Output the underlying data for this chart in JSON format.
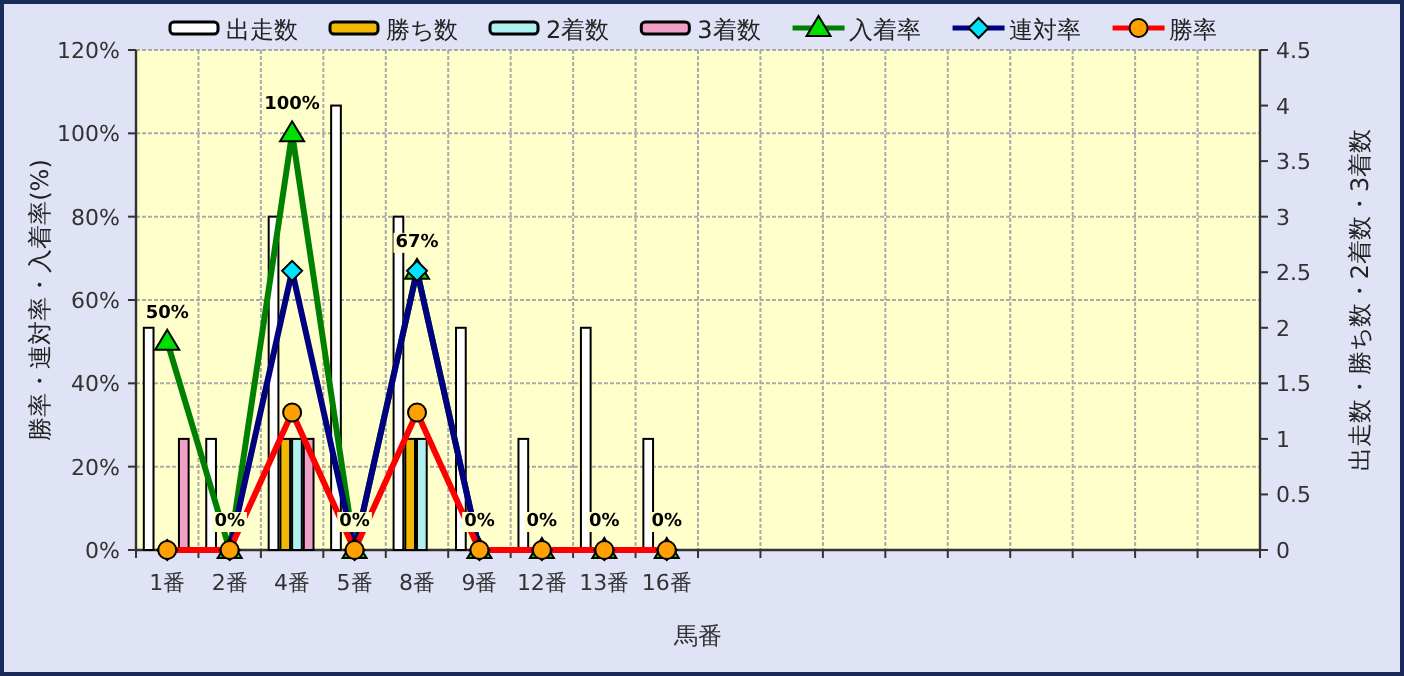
{
  "chart_data": {
    "type": "bar",
    "xlabel": "馬番",
    "ylabel": "勝率・連対率・入着率(%)",
    "y2label": "出走数・勝ち数・2着数・3着数",
    "categories": [
      "1番",
      "2番",
      "4番",
      "5番",
      "8番",
      "9番",
      "12番",
      "13番",
      "16番",
      null,
      null,
      null,
      null,
      null,
      null,
      null,
      null,
      null
    ],
    "series": [
      {
        "name": "出走数",
        "axis": "y2",
        "color": "#ffffff",
        "values": [
          2,
          1,
          3,
          4,
          3,
          2,
          1,
          2,
          1,
          null,
          null,
          null,
          null,
          null,
          null,
          null,
          null,
          null
        ]
      },
      {
        "name": "勝ち数",
        "axis": "y2",
        "color": "#f0b800",
        "values": [
          0,
          0,
          1,
          0,
          1,
          0,
          0,
          0,
          0,
          null,
          null,
          null,
          null,
          null,
          null,
          null,
          null,
          null
        ]
      },
      {
        "name": "2着数",
        "axis": "y2",
        "color": "#b0f0f0",
        "values": [
          0,
          0,
          1,
          0,
          1,
          0,
          0,
          0,
          0,
          null,
          null,
          null,
          null,
          null,
          null,
          null,
          null,
          null
        ]
      },
      {
        "name": "3着数",
        "axis": "y2",
        "color": "#f0a0c8",
        "values": [
          1,
          0,
          1,
          0,
          0,
          0,
          0,
          0,
          0,
          null,
          null,
          null,
          null,
          null,
          null,
          null,
          null,
          null
        ]
      },
      {
        "name": "入着率",
        "type": "line",
        "marker": "triangle",
        "color": "#008000",
        "values": [
          50,
          0,
          100,
          0,
          67,
          0,
          0,
          0,
          0,
          null,
          null,
          null,
          null,
          null,
          null,
          null,
          null,
          null
        ],
        "value_labels": [
          "50%",
          "0%",
          "100%",
          "0%",
          "67%",
          "0%",
          "0%",
          "0%",
          "0%",
          null,
          null,
          null,
          null,
          null,
          null,
          null,
          null,
          null
        ]
      },
      {
        "name": "連対率",
        "type": "line",
        "marker": "diamond",
        "color": "#000080",
        "values": [
          0,
          0,
          67,
          0,
          67,
          0,
          0,
          0,
          0,
          null,
          null,
          null,
          null,
          null,
          null,
          null,
          null,
          null
        ]
      },
      {
        "name": "勝率",
        "type": "line",
        "marker": "circle",
        "color": "#ff0000",
        "values": [
          0,
          0,
          33,
          0,
          33,
          0,
          0,
          0,
          0,
          null,
          null,
          null,
          null,
          null,
          null,
          null,
          null,
          null
        ]
      }
    ],
    "ylim": [
      0,
      120
    ],
    "yticks": [
      {
        "value": 0,
        "label": "0%"
      },
      {
        "value": 20,
        "label": "20%"
      },
      {
        "value": 40,
        "label": "40%"
      },
      {
        "value": 60,
        "label": "60%"
      },
      {
        "value": 80,
        "label": "80%"
      },
      {
        "value": 100,
        "label": "100%"
      },
      {
        "value": 120,
        "label": "120%"
      }
    ],
    "y2lim": [
      0,
      4.5
    ],
    "y2ticks": [
      0,
      0.5,
      1,
      1.5,
      2,
      2.5,
      3,
      3.5,
      4,
      4.5
    ],
    "grid": true,
    "legend": "top"
  }
}
